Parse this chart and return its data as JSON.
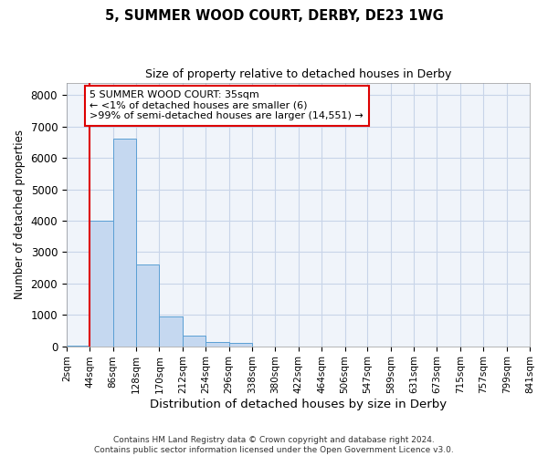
{
  "title1": "5, SUMMER WOOD COURT, DERBY, DE23 1WG",
  "title2": "Size of property relative to detached houses in Derby",
  "xlabel": "Distribution of detached houses by size in Derby",
  "ylabel": "Number of detached properties",
  "bar_edges": [
    2,
    44,
    86,
    128,
    170,
    212,
    254,
    296,
    338,
    380,
    422,
    464,
    506,
    547,
    589,
    631,
    673,
    715,
    757,
    799,
    841
  ],
  "bar_heights": [
    6,
    4000,
    6600,
    2600,
    950,
    330,
    130,
    110,
    0,
    0,
    0,
    0,
    0,
    0,
    0,
    0,
    0,
    0,
    0,
    0
  ],
  "bar_color": "#c5d8f0",
  "bar_edgecolor": "#5a9fd4",
  "grid_color": "#c8d4e8",
  "background_color": "#ffffff",
  "plot_bg_color": "#f0f4fa",
  "vline_x": 44,
  "vline_color": "#dd0000",
  "annotation_text": "5 SUMMER WOOD COURT: 35sqm\n← <1% of detached houses are smaller (6)\n>99% of semi-detached houses are larger (14,551) →",
  "annotation_box_color": "white",
  "annotation_box_edgecolor": "#dd0000",
  "ylim": [
    0,
    8400
  ],
  "yticks": [
    0,
    1000,
    2000,
    3000,
    4000,
    5000,
    6000,
    7000,
    8000
  ],
  "tick_labels": [
    "2sqm",
    "44sqm",
    "86sqm",
    "128sqm",
    "170sqm",
    "212sqm",
    "254sqm",
    "296sqm",
    "338sqm",
    "380sqm",
    "422sqm",
    "464sqm",
    "506sqm",
    "547sqm",
    "589sqm",
    "631sqm",
    "673sqm",
    "715sqm",
    "757sqm",
    "799sqm",
    "841sqm"
  ],
  "footnote": "Contains HM Land Registry data © Crown copyright and database right 2024.\nContains public sector information licensed under the Open Government Licence v3.0."
}
